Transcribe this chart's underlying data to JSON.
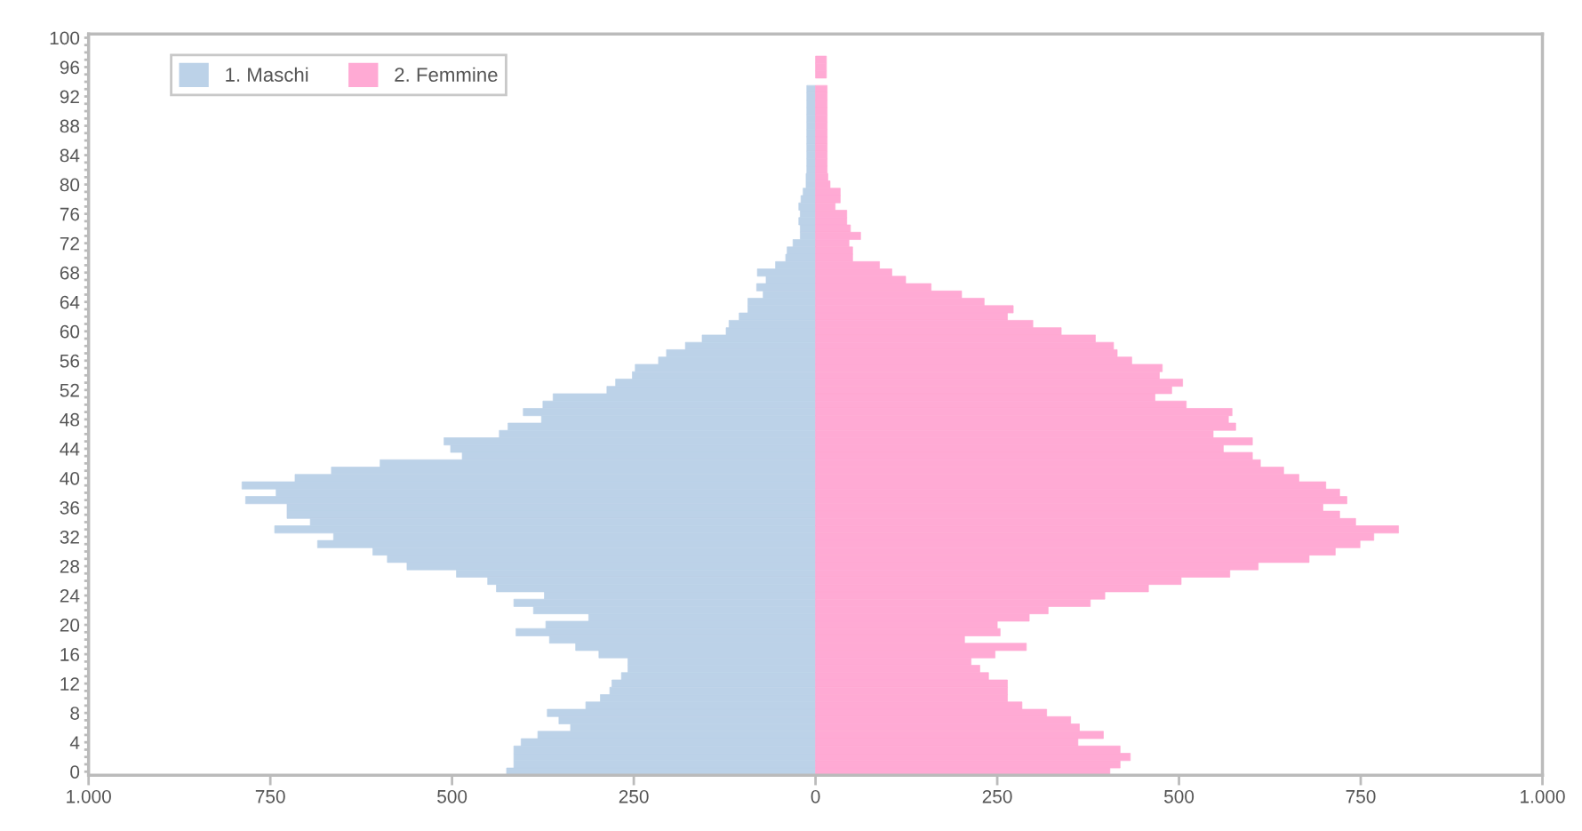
{
  "chart_data": {
    "type": "bar",
    "orientation": "horizontal",
    "stacked": true,
    "categories": [
      "100",
      null,
      null,
      null,
      "96",
      null,
      null,
      null,
      "92",
      null,
      null,
      null,
      "88",
      null,
      null,
      null,
      "84",
      null,
      null,
      null,
      "80",
      null,
      null,
      null,
      "76",
      null,
      null,
      null,
      "72",
      null,
      null,
      null,
      "68",
      null,
      null,
      null,
      "64",
      null,
      null,
      null,
      "60",
      null,
      null,
      null,
      "56",
      null,
      null,
      null,
      "52",
      null,
      null,
      null,
      "48",
      null,
      null,
      null,
      "44",
      null,
      null,
      null,
      "40",
      null,
      null,
      null,
      "36",
      null,
      null,
      null,
      "32",
      null,
      null,
      null,
      "28",
      null,
      null,
      null,
      "24",
      null,
      null,
      null,
      "20",
      null,
      null,
      null,
      "16",
      null,
      null,
      null,
      "12",
      null,
      null,
      null,
      "8",
      null,
      null,
      null,
      "4",
      null,
      null,
      null,
      "0"
    ],
    "series": [
      {
        "name": "1. Maschi",
        "color": "#bcd2e8",
        "values": [
          null,
          null,
          null,
          null,
          null,
          null,
          null,
          -12,
          -12,
          -12,
          -12,
          -12,
          -12,
          -12,
          -12,
          -12,
          -12,
          -12,
          -12,
          -13,
          -13,
          -17,
          -20,
          -23,
          -21,
          -23,
          -21,
          -21,
          -31,
          -39,
          -41,
          -55,
          -80,
          -68,
          -81,
          -72,
          -93,
          -93,
          -105,
          -119,
          -123,
          -156,
          -179,
          -205,
          -216,
          -248,
          -252,
          -275,
          -287,
          -361,
          -375,
          -402,
          -377,
          -423,
          -435,
          -511,
          -502,
          -486,
          -599,
          -666,
          -716,
          -789,
          -742,
          -784,
          -727,
          -727,
          -695,
          -744,
          -663,
          -685,
          -609,
          -589,
          -562,
          -494,
          -451,
          -439,
          -373,
          -415,
          -388,
          -312,
          -371,
          -412,
          -366,
          -330,
          -298,
          -258,
          -258,
          -267,
          -280,
          -283,
          -296,
          -316,
          -369,
          -353,
          -337,
          -382,
          -405,
          -415,
          -415,
          -415,
          -425
        ]
      },
      {
        "name": "2. Femmine",
        "color": "#ffaad4",
        "values": [
          null,
          null,
          null,
          15,
          15,
          15,
          null,
          16,
          16,
          16,
          16,
          16,
          16,
          16,
          16,
          16,
          16,
          16,
          16,
          17,
          20,
          34,
          34,
          27,
          43,
          43,
          48,
          62,
          46,
          51,
          51,
          88,
          105,
          124,
          159,
          201,
          232,
          272,
          264,
          299,
          338,
          385,
          410,
          415,
          435,
          477,
          473,
          505,
          490,
          467,
          510,
          573,
          568,
          578,
          547,
          601,
          561,
          601,
          612,
          644,
          665,
          702,
          721,
          731,
          698,
          721,
          743,
          802,
          768,
          749,
          715,
          679,
          609,
          570,
          503,
          458,
          398,
          378,
          320,
          294,
          250,
          254,
          205,
          290,
          247,
          214,
          226,
          238,
          264,
          264,
          264,
          284,
          318,
          351,
          363,
          396,
          361,
          419,
          433,
          419,
          405
        ]
      }
    ],
    "xlim": [
      -1000,
      1000
    ],
    "xticks": [
      {
        "value": -1000,
        "label": "1.000"
      },
      {
        "value": -750,
        "label": "750"
      },
      {
        "value": -500,
        "label": "500"
      },
      {
        "value": -250,
        "label": "250"
      },
      0,
      250,
      500,
      750,
      {
        "value": 1000,
        "label": "1.000"
      }
    ],
    "grid": false,
    "legend": "top left"
  }
}
